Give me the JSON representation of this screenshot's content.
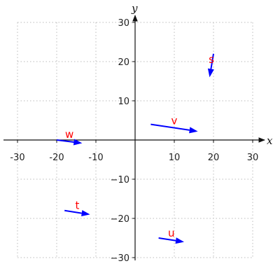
{
  "chart_data": {
    "type": "vector-field",
    "xlabel": "x",
    "ylabel": "y",
    "xlim": [
      -30,
      30
    ],
    "ylim": [
      -30,
      30
    ],
    "xticks": [
      -30,
      -20,
      -10,
      10,
      20,
      30
    ],
    "yticks": [
      -30,
      -20,
      -10,
      10,
      20,
      30
    ],
    "xtick_labels": [
      "-30",
      "-20",
      "-10",
      "10",
      "20",
      "30"
    ],
    "ytick_labels": [
      "−30",
      "−20",
      "−10",
      "10",
      "20",
      "30"
    ],
    "grid": true,
    "vector_color": "#0000ff",
    "label_color": "#ff0000",
    "vectors": [
      {
        "name": "s",
        "start": [
          20,
          22
        ],
        "end": [
          19,
          16
        ]
      },
      {
        "name": "v",
        "start": [
          4,
          4
        ],
        "end": [
          16,
          2.2
        ]
      },
      {
        "name": "w",
        "start": [
          -20,
          0
        ],
        "end": [
          -13.5,
          -0.8
        ]
      },
      {
        "name": "t",
        "start": [
          -18,
          -18
        ],
        "end": [
          -11.5,
          -19
        ]
      },
      {
        "name": "u",
        "start": [
          6,
          -25
        ],
        "end": [
          12.5,
          -26
        ]
      }
    ]
  }
}
